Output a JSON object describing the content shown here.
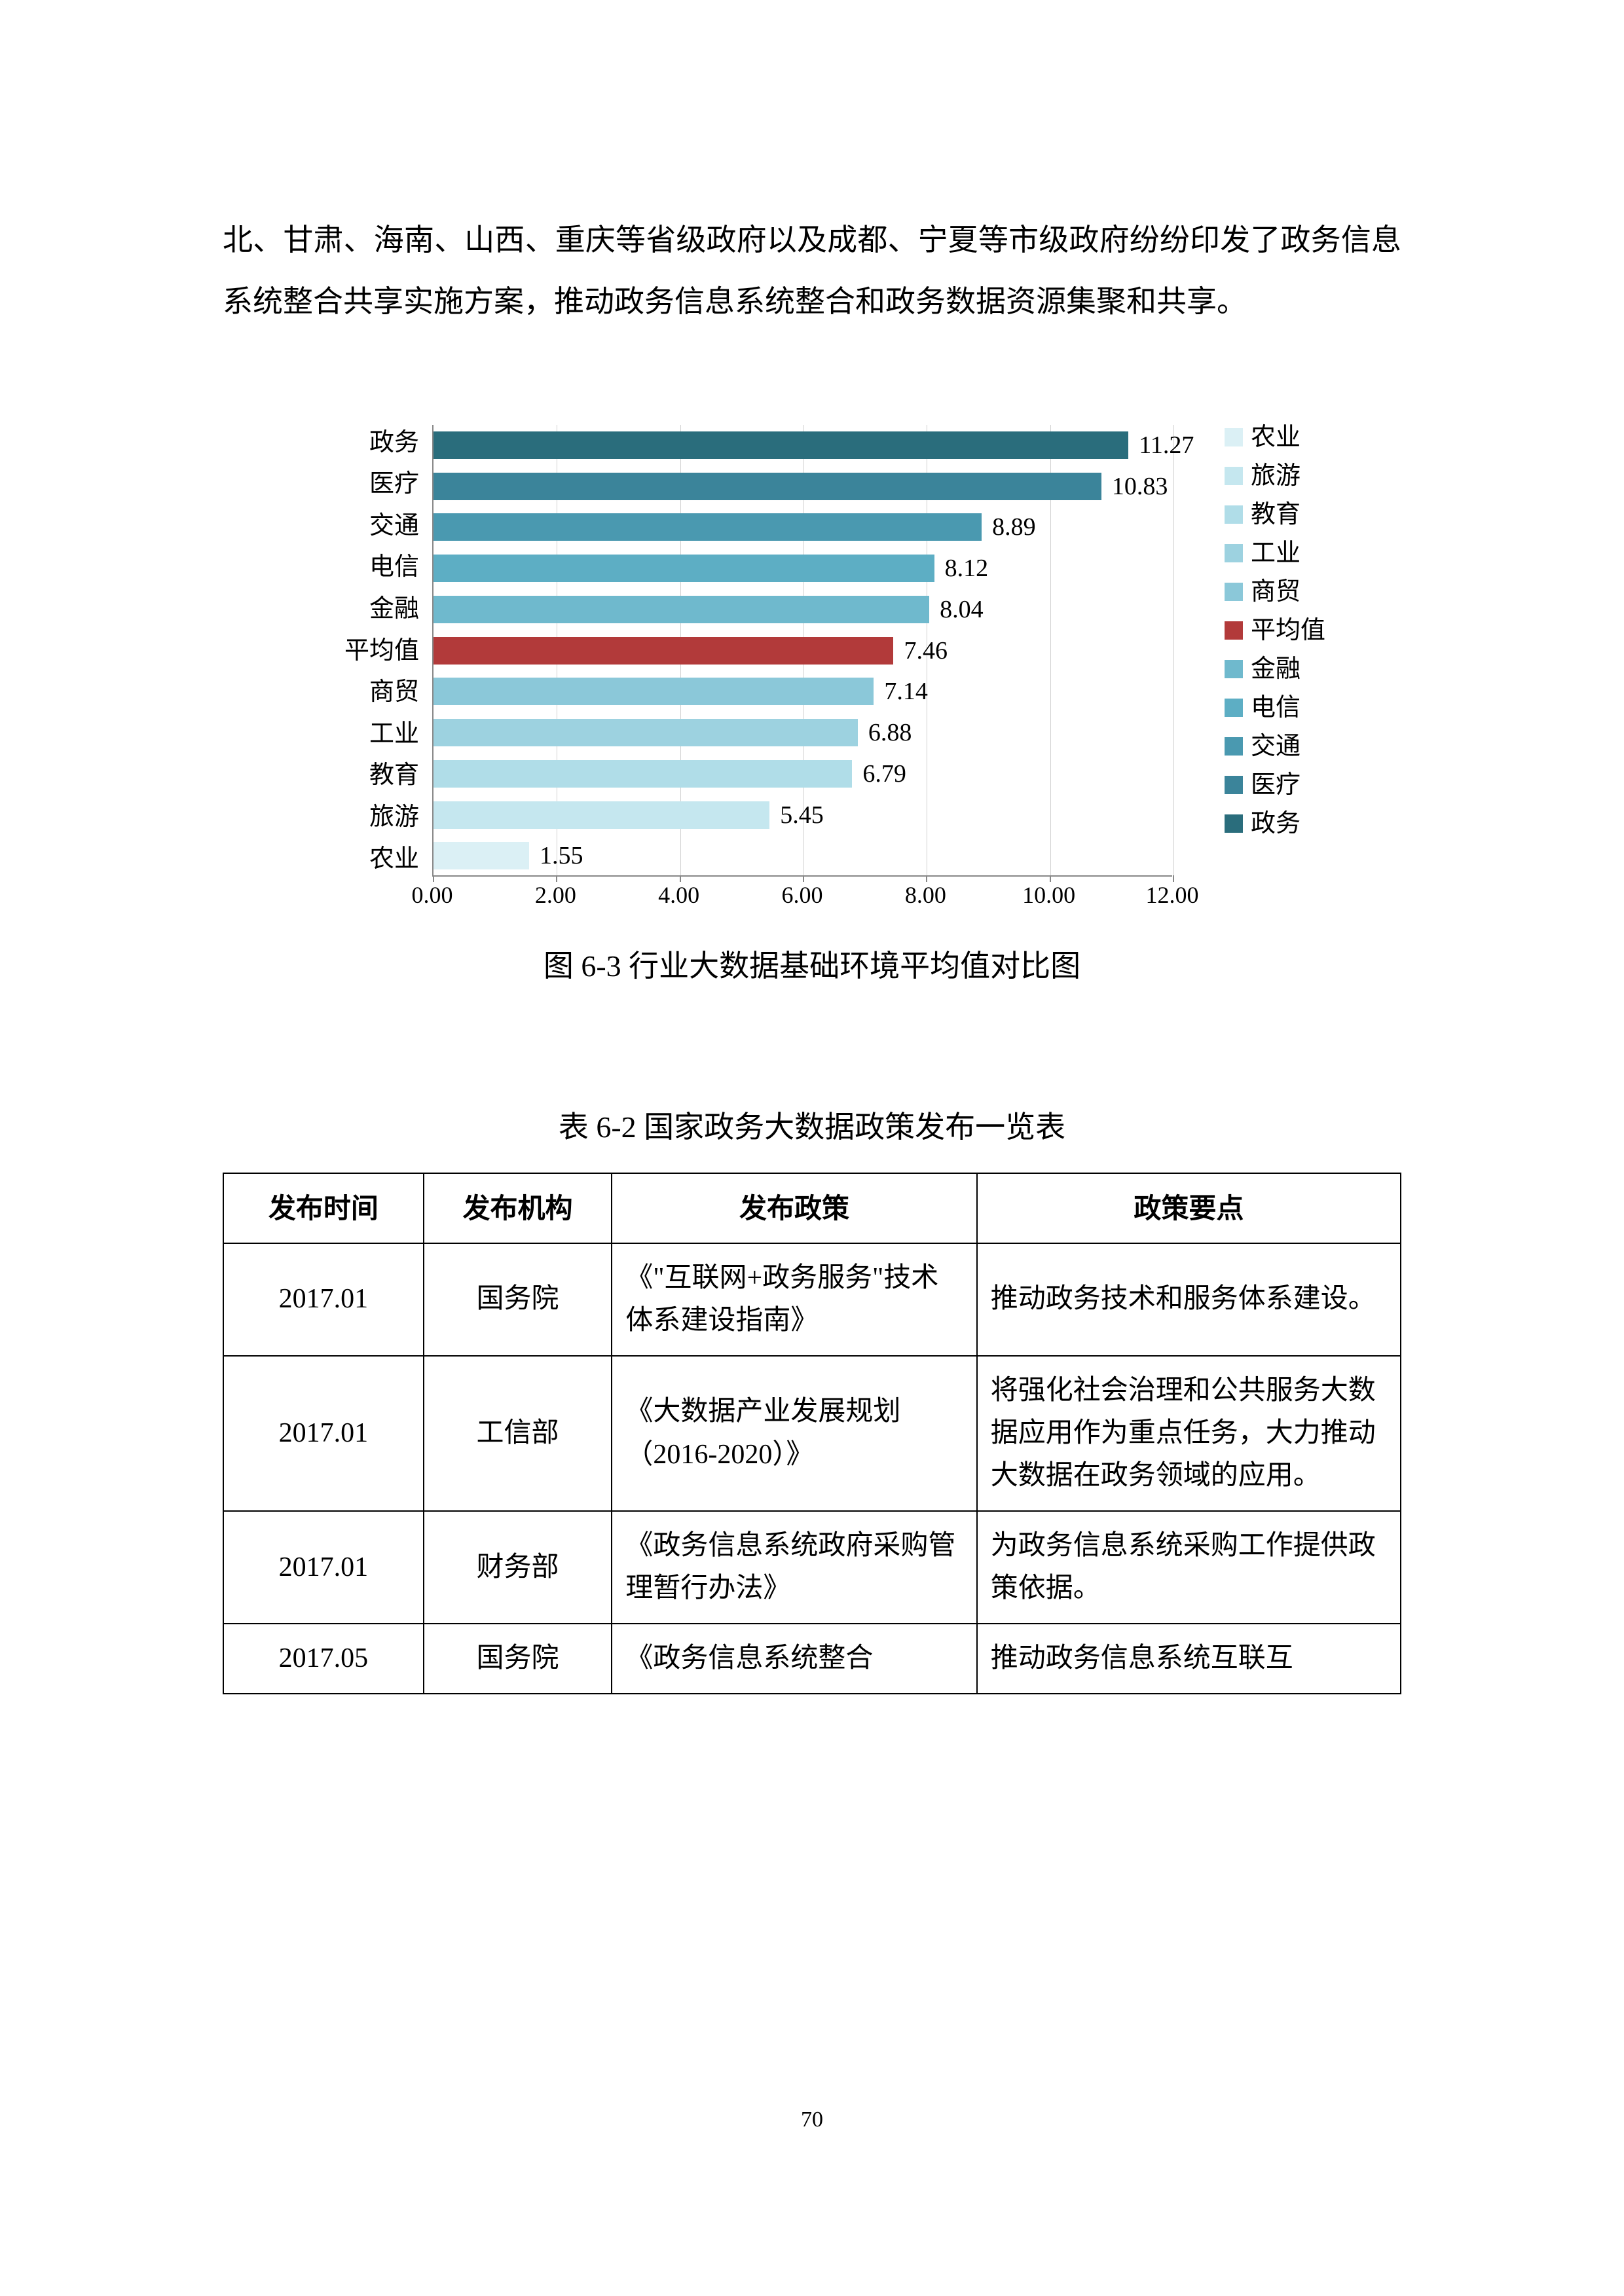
{
  "body_text": "北、甘肃、海南、山西、重庆等省级政府以及成都、宁夏等市级政府纷纷印发了政务信息系统整合共享实施方案，推动政务信息系统整合和政务数据资源集聚和共享。",
  "chart": {
    "type": "horizontal_bar",
    "caption": "图 6-3  行业大数据基础环境平均值对比图",
    "xlim_max": 12.0,
    "xticks": [
      "0.00",
      "2.00",
      "4.00",
      "6.00",
      "8.00",
      "10.00",
      "12.00"
    ],
    "categories": [
      {
        "label": "政务",
        "value": 11.27,
        "display": "11.27",
        "color": "#2a6d7c"
      },
      {
        "label": "医疗",
        "value": 10.83,
        "display": "10.83",
        "color": "#3b849a"
      },
      {
        "label": "交通",
        "value": 8.89,
        "display": "8.89",
        "color": "#4a99b0"
      },
      {
        "label": "电信",
        "value": 8.12,
        "display": "8.12",
        "color": "#5daec4"
      },
      {
        "label": "金融",
        "value": 8.04,
        "display": "8.04",
        "color": "#6fb9cd"
      },
      {
        "label": "平均值",
        "value": 7.46,
        "display": "7.46",
        "color": "#b23a3a"
      },
      {
        "label": "商贸",
        "value": 7.14,
        "display": "7.14",
        "color": "#8bc8d9"
      },
      {
        "label": "工业",
        "value": 6.88,
        "display": "6.88",
        "color": "#9dd2e0"
      },
      {
        "label": "教育",
        "value": 6.79,
        "display": "6.79",
        "color": "#b0dde8"
      },
      {
        "label": "旅游",
        "value": 5.45,
        "display": "5.45",
        "color": "#c5e7ef"
      },
      {
        "label": "农业",
        "value": 1.55,
        "display": "1.55",
        "color": "#dbf0f5"
      }
    ],
    "legend": [
      {
        "label": "农业",
        "color": "#dbf0f5"
      },
      {
        "label": "旅游",
        "color": "#c5e7ef"
      },
      {
        "label": "教育",
        "color": "#b0dde8"
      },
      {
        "label": "工业",
        "color": "#9dd2e0"
      },
      {
        "label": "商贸",
        "color": "#8bc8d9"
      },
      {
        "label": "平均值",
        "color": "#b23a3a"
      },
      {
        "label": "金融",
        "color": "#6fb9cd"
      },
      {
        "label": "电信",
        "color": "#5daec4"
      },
      {
        "label": "交通",
        "color": "#4a99b0"
      },
      {
        "label": "医疗",
        "color": "#3b849a"
      },
      {
        "label": "政务",
        "color": "#2a6d7c"
      }
    ]
  },
  "table": {
    "caption": "表 6-2  国家政务大数据政策发布一览表",
    "columns": [
      "发布时间",
      "发布机构",
      "发布政策",
      "政策要点"
    ],
    "col_widths": [
      "17%",
      "16%",
      "31%",
      "36%"
    ],
    "rows": [
      {
        "time": "2017.01",
        "agency": "国务院",
        "policy": "《\"互联网+政务服务\"技术体系建设指南》",
        "points": "推动政务技术和服务体系建设。"
      },
      {
        "time": "2017.01",
        "agency": "工信部",
        "policy": "《大数据产业发展规划（2016-2020）》",
        "points": "将强化社会治理和公共服务大数据应用作为重点任务，大力推动大数据在政务领域的应用。"
      },
      {
        "time": "2017.01",
        "agency": "财务部",
        "policy": "《政务信息系统政府采购管理暂行办法》",
        "points": "为政务信息系统采购工作提供政策依据。"
      },
      {
        "time": "2017.05",
        "agency": "国务院",
        "policy": "《政务信息系统整合",
        "points": "推动政务信息系统互联互"
      }
    ]
  },
  "page_number": "70"
}
